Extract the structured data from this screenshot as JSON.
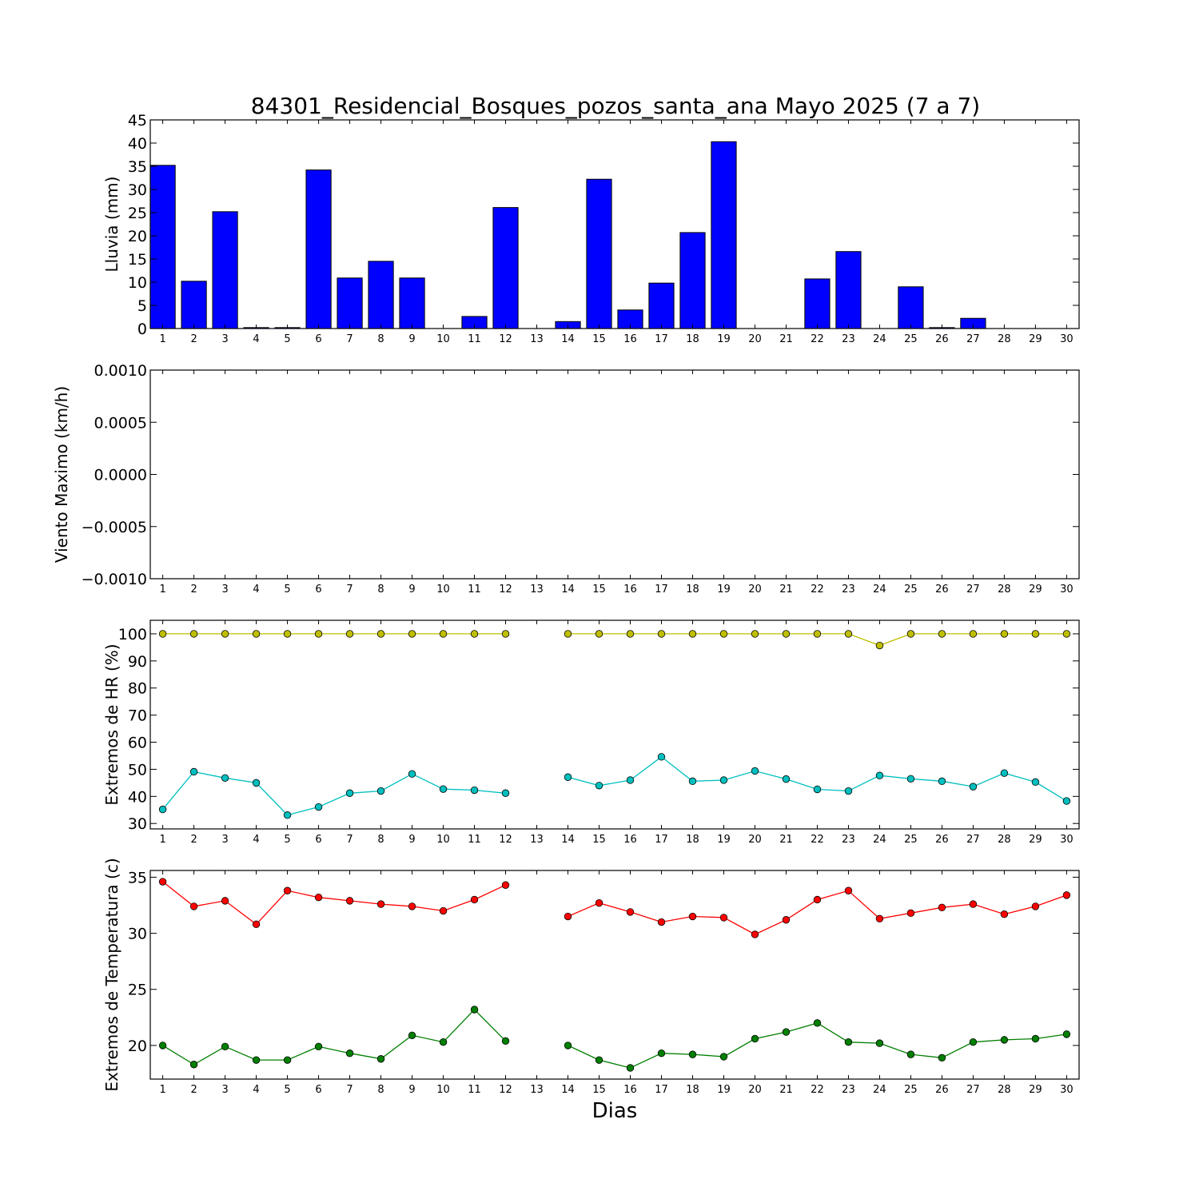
{
  "figure": {
    "title": "84301_Residencial_Bosques_pozos_santa_ana Mayo 2025  (7 a 7)",
    "xlabel": "Dias"
  },
  "chart_data": [
    {
      "type": "bar",
      "ylabel": "Lluvia (mm)",
      "ylim": [
        0,
        45
      ],
      "yticks": [
        0,
        5,
        10,
        15,
        20,
        25,
        30,
        35,
        40,
        45
      ],
      "ytick_labels": [
        "0",
        "5",
        "10",
        "15",
        "20",
        "25",
        "30",
        "35",
        "40",
        "45"
      ],
      "categories": [
        "1",
        "2",
        "3",
        "4",
        "5",
        "6",
        "7",
        "8",
        "9",
        "10",
        "11",
        "12",
        "13",
        "14",
        "15",
        "16",
        "17",
        "18",
        "19",
        "20",
        "21",
        "22",
        "23",
        "24",
        "25",
        "26",
        "27",
        "28",
        "29",
        "30"
      ],
      "series": [
        {
          "color": "#0000ff",
          "values": [
            35.2,
            10.2,
            25.2,
            0.2,
            0.2,
            34.2,
            10.9,
            14.5,
            10.9,
            0.0,
            2.6,
            26.1,
            null,
            1.5,
            32.2,
            4.0,
            9.8,
            20.7,
            40.3,
            0.0,
            0.0,
            10.7,
            16.6,
            0.0,
            9.0,
            0.2,
            2.2,
            0.0,
            0.0,
            0.0
          ]
        }
      ]
    },
    {
      "type": "line",
      "ylabel": "Viento Maximo (km/h)",
      "ylim": [
        -0.001,
        0.001
      ],
      "yticks": [
        -0.001,
        -0.0005,
        0.0,
        0.0005,
        0.001
      ],
      "ytick_labels": [
        "−0.0010",
        "−0.0005",
        "0.0000",
        "0.0005",
        "0.0010"
      ],
      "categories": [
        "1",
        "2",
        "3",
        "4",
        "5",
        "6",
        "7",
        "8",
        "9",
        "10",
        "11",
        "12",
        "13",
        "14",
        "15",
        "16",
        "17",
        "18",
        "19",
        "20",
        "21",
        "22",
        "23",
        "24",
        "25",
        "26",
        "27",
        "28",
        "29",
        "30"
      ],
      "series": []
    },
    {
      "type": "line",
      "ylabel": "Extremos de HR (%)",
      "ylim": [
        28,
        105
      ],
      "yticks": [
        30,
        40,
        50,
        60,
        70,
        80,
        90,
        100
      ],
      "ytick_labels": [
        "30",
        "40",
        "50",
        "60",
        "70",
        "80",
        "90",
        "100"
      ],
      "categories": [
        "1",
        "2",
        "3",
        "4",
        "5",
        "6",
        "7",
        "8",
        "9",
        "10",
        "11",
        "12",
        "13",
        "14",
        "15",
        "16",
        "17",
        "18",
        "19",
        "20",
        "21",
        "22",
        "23",
        "24",
        "25",
        "26",
        "27",
        "28",
        "29",
        "30"
      ],
      "series": [
        {
          "color": "#bfbf00",
          "values": [
            100,
            100,
            100,
            100,
            100,
            100,
            100,
            100,
            100,
            100,
            100,
            100,
            null,
            100,
            100,
            100,
            100,
            100,
            100,
            100,
            100,
            100,
            100,
            95.7,
            100,
            100,
            100,
            100,
            100,
            100
          ]
        },
        {
          "color": "#00bfbf",
          "values": [
            35.2,
            49.1,
            46.8,
            45.0,
            33.1,
            36.1,
            41.2,
            42.0,
            48.3,
            42.7,
            42.3,
            41.2,
            null,
            47.1,
            44.0,
            46.0,
            54.6,
            45.6,
            46.0,
            49.4,
            46.4,
            42.6,
            42.0,
            47.7,
            46.5,
            45.6,
            43.6,
            48.6,
            45.3,
            38.3
          ]
        }
      ]
    },
    {
      "type": "line",
      "ylabel": "Extremos de Temperatura (c)",
      "ylim": [
        17,
        35.6
      ],
      "yticks": [
        20,
        25,
        30,
        35
      ],
      "ytick_labels": [
        "20",
        "25",
        "30",
        "35"
      ],
      "categories": [
        "1",
        "2",
        "3",
        "4",
        "5",
        "6",
        "7",
        "8",
        "9",
        "10",
        "11",
        "12",
        "13",
        "14",
        "15",
        "16",
        "17",
        "18",
        "19",
        "20",
        "21",
        "22",
        "23",
        "24",
        "25",
        "26",
        "27",
        "28",
        "29",
        "30"
      ],
      "series": [
        {
          "color": "#ff0000",
          "values": [
            34.6,
            32.4,
            32.9,
            30.8,
            33.8,
            33.2,
            32.9,
            32.6,
            32.4,
            32.0,
            33.0,
            34.3,
            null,
            31.5,
            32.7,
            31.9,
            31.0,
            31.5,
            31.4,
            29.9,
            31.2,
            33.0,
            33.8,
            31.3,
            31.8,
            32.3,
            32.6,
            31.7,
            32.4,
            33.4
          ]
        },
        {
          "color": "#007f00",
          "values": [
            20.0,
            18.3,
            19.9,
            18.7,
            18.7,
            19.9,
            19.3,
            18.8,
            20.9,
            20.3,
            23.2,
            20.4,
            null,
            20.0,
            18.7,
            18.0,
            19.3,
            19.2,
            19.0,
            20.6,
            21.2,
            22.0,
            20.3,
            20.2,
            19.2,
            18.9,
            20.3,
            20.5,
            20.6,
            21.0
          ]
        }
      ]
    }
  ]
}
